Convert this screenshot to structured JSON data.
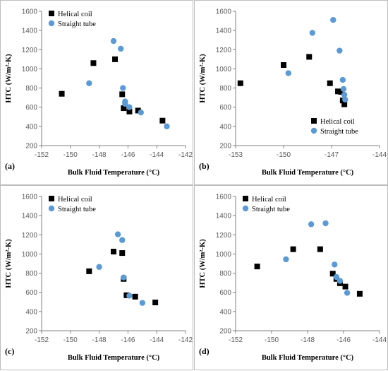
{
  "legend": {
    "helical": "Helical coil",
    "straight": "Straight tube"
  },
  "colors": {
    "helical": "#000000",
    "straight": "#5b9bd5",
    "axis": "#808080"
  },
  "chart_data": [
    {
      "type": "scatter",
      "panel_label": "(a)",
      "xlabel": "Bulk Fluid Temperature (°C)",
      "ylabel": "HTC (W/m²-K)",
      "xlim": [
        -152,
        -142
      ],
      "ylim": [
        200,
        1600
      ],
      "xticks": [
        -152,
        -150,
        -148,
        -146,
        -144,
        -142
      ],
      "yticks": [
        200,
        400,
        600,
        800,
        1000,
        1200,
        1400,
        1600
      ],
      "legend_position": "top-left",
      "series": [
        {
          "name": "Helical coil",
          "marker": "square",
          "x": [
            -150.6,
            -148.4,
            -146.9,
            -146.4,
            -146.3,
            -145.9,
            -145.3,
            -143.6
          ],
          "y": [
            740,
            1060,
            1100,
            735,
            590,
            555,
            565,
            460
          ]
        },
        {
          "name": "Straight tube",
          "marker": "circle",
          "x": [
            -148.7,
            -147.0,
            -146.5,
            -146.35,
            -146.2,
            -146.2,
            -145.9,
            -145.1,
            -143.3
          ],
          "y": [
            850,
            1290,
            1210,
            800,
            660,
            635,
            600,
            545,
            400
          ]
        }
      ]
    },
    {
      "type": "scatter",
      "panel_label": "(b)",
      "xlabel": "Bulk Fluid Temperature (°C)",
      "ylabel": "HTC (W/m²-K)",
      "xlim": [
        -153,
        -144
      ],
      "ylim": [
        200,
        1600
      ],
      "xticks": [
        -153,
        -150,
        -147,
        -144
      ],
      "yticks": [
        200,
        400,
        600,
        800,
        1000,
        1200,
        1400,
        1600
      ],
      "legend_position": "bottom-right",
      "series": [
        {
          "name": "Helical coil",
          "marker": "square",
          "x": [
            -152.7,
            -150.0,
            -148.4,
            -147.1,
            -146.6,
            -146.4,
            -146.3,
            -146.2
          ],
          "y": [
            850,
            1040,
            1125,
            850,
            765,
            760,
            670,
            630
          ]
        },
        {
          "name": "Straight tube",
          "marker": "circle",
          "x": [
            -149.7,
            -148.2,
            -146.9,
            -146.5,
            -146.3,
            -146.25,
            -146.2,
            -146.15
          ],
          "y": [
            955,
            1375,
            1510,
            1190,
            885,
            790,
            730,
            680
          ]
        }
      ]
    },
    {
      "type": "scatter",
      "panel_label": "(c)",
      "xlabel": "Bulk Fluid Temperature (°C)",
      "ylabel": "HTC (W/m²-K)",
      "xlim": [
        -152,
        -142
      ],
      "ylim": [
        200,
        1600
      ],
      "xticks": [
        -152,
        -150,
        -148,
        -146,
        -144,
        -142
      ],
      "yticks": [
        200,
        400,
        600,
        800,
        1000,
        1200,
        1400,
        1600
      ],
      "legend_position": "top-left",
      "series": [
        {
          "name": "Helical coil",
          "marker": "square",
          "x": [
            -148.7,
            -147.0,
            -146.4,
            -146.3,
            -146.1,
            -145.5,
            -144.1
          ],
          "y": [
            820,
            1025,
            1010,
            740,
            570,
            555,
            495
          ]
        },
        {
          "name": "Straight tube",
          "marker": "circle",
          "x": [
            -148.0,
            -146.7,
            -146.4,
            -146.3,
            -145.9,
            -145.0
          ],
          "y": [
            865,
            1205,
            1145,
            755,
            565,
            490
          ]
        }
      ]
    },
    {
      "type": "scatter",
      "panel_label": "(d)",
      "xlabel": "Bulk Fluid Temperature (°C)",
      "ylabel": "HTC (W/m²-K)",
      "xlim": [
        -152,
        -144
      ],
      "ylim": [
        200,
        1600
      ],
      "xticks": [
        -152,
        -150,
        -148,
        -146,
        -144
      ],
      "yticks": [
        200,
        400,
        600,
        800,
        1000,
        1200,
        1400,
        1600
      ],
      "legend_position": "top-left",
      "series": [
        {
          "name": "Helical coil",
          "marker": "square",
          "x": [
            -150.8,
            -148.8,
            -147.3,
            -146.6,
            -146.4,
            -146.2,
            -145.9,
            -145.1
          ],
          "y": [
            870,
            1050,
            1050,
            795,
            740,
            695,
            660,
            585
          ]
        },
        {
          "name": "Straight tube",
          "marker": "circle",
          "x": [
            -149.2,
            -147.8,
            -147.0,
            -146.5,
            -146.4,
            -146.2,
            -145.8
          ],
          "y": [
            945,
            1310,
            1320,
            890,
            760,
            720,
            595
          ]
        }
      ]
    }
  ]
}
